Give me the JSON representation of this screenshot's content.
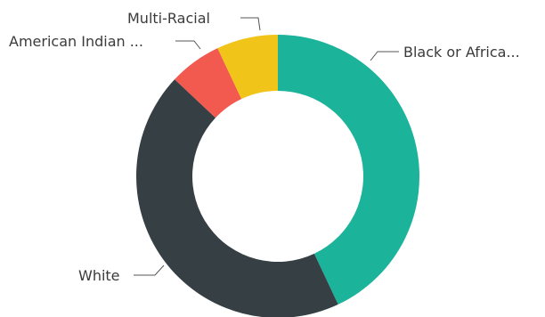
{
  "chart_data": {
    "type": "pie",
    "title": "",
    "donut": true,
    "categories": [
      "Black or Africa...",
      "White",
      "American Indian ...",
      "Multi-Racial"
    ],
    "values": [
      43,
      44,
      6,
      7
    ],
    "colors": [
      "#1bb39a",
      "#363f44",
      "#f2594f",
      "#f0c419"
    ],
    "legend": "none"
  }
}
